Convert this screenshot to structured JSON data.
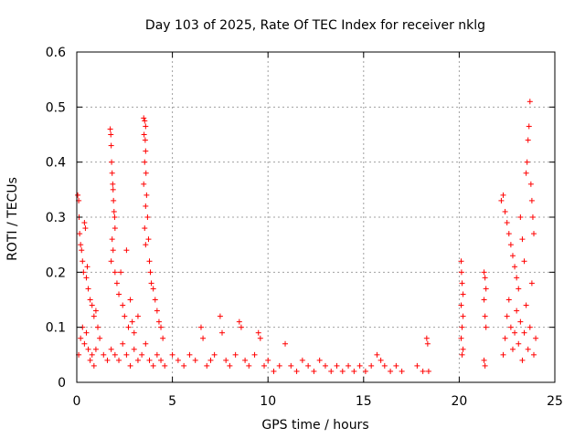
{
  "chart_data": {
    "type": "scatter",
    "title": "Day 103 of 2025, Rate Of TEC Index for receiver nklg",
    "xlabel": "GPS time / hours",
    "ylabel": "ROTI / TECUs",
    "xlim": [
      0,
      25
    ],
    "ylim": [
      0,
      0.6
    ],
    "xticks": [
      "0",
      "5",
      "10",
      "15",
      "20",
      "25"
    ],
    "yticks": [
      "0",
      "0.1",
      "0.2",
      "0.3",
      "0.4",
      "0.5",
      "0.6"
    ],
    "grid": true,
    "marker": "+",
    "color": "#ff0000",
    "series": [
      {
        "name": "ROTI",
        "points": [
          [
            0.05,
            0.34
          ],
          [
            0.1,
            0.33
          ],
          [
            0.12,
            0.3
          ],
          [
            0.15,
            0.27
          ],
          [
            0.2,
            0.25
          ],
          [
            0.25,
            0.24
          ],
          [
            0.3,
            0.22
          ],
          [
            0.35,
            0.2
          ],
          [
            0.4,
            0.29
          ],
          [
            0.45,
            0.28
          ],
          [
            0.5,
            0.19
          ],
          [
            0.55,
            0.21
          ],
          [
            0.6,
            0.17
          ],
          [
            0.7,
            0.15
          ],
          [
            0.8,
            0.14
          ],
          [
            0.9,
            0.12
          ],
          [
            1.0,
            0.13
          ],
          [
            1.1,
            0.1
          ],
          [
            0.1,
            0.05
          ],
          [
            0.2,
            0.08
          ],
          [
            0.3,
            0.1
          ],
          [
            0.4,
            0.07
          ],
          [
            0.5,
            0.09
          ],
          [
            0.6,
            0.06
          ],
          [
            0.7,
            0.04
          ],
          [
            0.8,
            0.05
          ],
          [
            0.9,
            0.03
          ],
          [
            1.0,
            0.06
          ],
          [
            1.2,
            0.08
          ],
          [
            1.4,
            0.05
          ],
          [
            1.6,
            0.04
          ],
          [
            1.8,
            0.06
          ],
          [
            2.0,
            0.05
          ],
          [
            2.2,
            0.04
          ],
          [
            2.4,
            0.07
          ],
          [
            2.6,
            0.05
          ],
          [
            2.8,
            0.03
          ],
          [
            3.0,
            0.06
          ],
          [
            3.2,
            0.04
          ],
          [
            3.4,
            0.05
          ],
          [
            3.6,
            0.07
          ],
          [
            3.8,
            0.04
          ],
          [
            4.0,
            0.03
          ],
          [
            4.2,
            0.05
          ],
          [
            4.4,
            0.04
          ],
          [
            4.6,
            0.03
          ],
          [
            1.75,
            0.46
          ],
          [
            1.78,
            0.45
          ],
          [
            1.8,
            0.43
          ],
          [
            1.82,
            0.4
          ],
          [
            1.85,
            0.38
          ],
          [
            1.88,
            0.36
          ],
          [
            1.9,
            0.35
          ],
          [
            1.92,
            0.33
          ],
          [
            1.95,
            0.31
          ],
          [
            1.98,
            0.3
          ],
          [
            2.0,
            0.28
          ],
          [
            1.85,
            0.26
          ],
          [
            1.9,
            0.24
          ],
          [
            1.8,
            0.22
          ],
          [
            2.0,
            0.2
          ],
          [
            2.1,
            0.18
          ],
          [
            2.2,
            0.16
          ],
          [
            2.3,
            0.2
          ],
          [
            2.4,
            0.14
          ],
          [
            2.5,
            0.12
          ],
          [
            2.6,
            0.24
          ],
          [
            2.7,
            0.1
          ],
          [
            2.8,
            0.15
          ],
          [
            2.9,
            0.11
          ],
          [
            3.0,
            0.09
          ],
          [
            3.2,
            0.12
          ],
          [
            3.5,
            0.48
          ],
          [
            3.55,
            0.475
          ],
          [
            3.6,
            0.465
          ],
          [
            3.52,
            0.45
          ],
          [
            3.58,
            0.44
          ],
          [
            3.6,
            0.42
          ],
          [
            3.55,
            0.4
          ],
          [
            3.62,
            0.38
          ],
          [
            3.5,
            0.36
          ],
          [
            3.65,
            0.34
          ],
          [
            3.6,
            0.32
          ],
          [
            3.7,
            0.3
          ],
          [
            3.55,
            0.28
          ],
          [
            3.75,
            0.26
          ],
          [
            3.6,
            0.25
          ],
          [
            3.8,
            0.22
          ],
          [
            3.85,
            0.2
          ],
          [
            3.9,
            0.18
          ],
          [
            4.0,
            0.17
          ],
          [
            4.1,
            0.15
          ],
          [
            4.2,
            0.13
          ],
          [
            4.3,
            0.11
          ],
          [
            4.4,
            0.1
          ],
          [
            4.5,
            0.08
          ],
          [
            5.0,
            0.05
          ],
          [
            5.3,
            0.04
          ],
          [
            5.6,
            0.03
          ],
          [
            5.9,
            0.05
          ],
          [
            6.2,
            0.04
          ],
          [
            6.5,
            0.1
          ],
          [
            6.6,
            0.08
          ],
          [
            6.8,
            0.03
          ],
          [
            7.0,
            0.04
          ],
          [
            7.2,
            0.05
          ],
          [
            7.5,
            0.12
          ],
          [
            7.6,
            0.09
          ],
          [
            7.8,
            0.04
          ],
          [
            8.0,
            0.03
          ],
          [
            8.3,
            0.05
          ],
          [
            8.5,
            0.11
          ],
          [
            8.6,
            0.1
          ],
          [
            8.8,
            0.04
          ],
          [
            9.0,
            0.03
          ],
          [
            9.3,
            0.05
          ],
          [
            9.5,
            0.09
          ],
          [
            9.6,
            0.08
          ],
          [
            9.8,
            0.03
          ],
          [
            10.0,
            0.04
          ],
          [
            10.3,
            0.02
          ],
          [
            10.6,
            0.03
          ],
          [
            10.9,
            0.07
          ],
          [
            11.2,
            0.03
          ],
          [
            11.5,
            0.02
          ],
          [
            11.8,
            0.04
          ],
          [
            12.1,
            0.03
          ],
          [
            12.4,
            0.02
          ],
          [
            12.7,
            0.04
          ],
          [
            13.0,
            0.03
          ],
          [
            13.3,
            0.02
          ],
          [
            13.6,
            0.03
          ],
          [
            13.9,
            0.02
          ],
          [
            14.2,
            0.03
          ],
          [
            14.5,
            0.02
          ],
          [
            14.8,
            0.03
          ],
          [
            15.1,
            0.02
          ],
          [
            15.4,
            0.03
          ],
          [
            15.7,
            0.05
          ],
          [
            15.9,
            0.04
          ],
          [
            16.1,
            0.03
          ],
          [
            16.4,
            0.02
          ],
          [
            16.7,
            0.03
          ],
          [
            17.0,
            0.02
          ],
          [
            17.8,
            0.03
          ],
          [
            18.1,
            0.02
          ],
          [
            18.3,
            0.08
          ],
          [
            18.35,
            0.07
          ],
          [
            18.4,
            0.02
          ],
          [
            20.1,
            0.22
          ],
          [
            20.12,
            0.2
          ],
          [
            20.15,
            0.18
          ],
          [
            20.2,
            0.16
          ],
          [
            20.1,
            0.14
          ],
          [
            20.2,
            0.12
          ],
          [
            20.15,
            0.1
          ],
          [
            20.1,
            0.08
          ],
          [
            20.2,
            0.06
          ],
          [
            20.15,
            0.05
          ],
          [
            21.3,
            0.2
          ],
          [
            21.35,
            0.19
          ],
          [
            21.4,
            0.17
          ],
          [
            21.3,
            0.15
          ],
          [
            21.35,
            0.12
          ],
          [
            21.4,
            0.1
          ],
          [
            21.3,
            0.04
          ],
          [
            21.35,
            0.03
          ],
          [
            22.2,
            0.33
          ],
          [
            22.3,
            0.34
          ],
          [
            22.4,
            0.31
          ],
          [
            22.5,
            0.29
          ],
          [
            22.6,
            0.27
          ],
          [
            22.7,
            0.25
          ],
          [
            22.8,
            0.23
          ],
          [
            22.9,
            0.21
          ],
          [
            23.0,
            0.19
          ],
          [
            23.1,
            0.17
          ],
          [
            23.2,
            0.3
          ],
          [
            23.3,
            0.26
          ],
          [
            23.4,
            0.22
          ],
          [
            23.5,
            0.38
          ],
          [
            23.55,
            0.4
          ],
          [
            23.6,
            0.44
          ],
          [
            23.65,
            0.465
          ],
          [
            23.7,
            0.51
          ],
          [
            23.75,
            0.36
          ],
          [
            23.8,
            0.33
          ],
          [
            23.85,
            0.3
          ],
          [
            23.9,
            0.27
          ],
          [
            22.3,
            0.05
          ],
          [
            22.4,
            0.08
          ],
          [
            22.5,
            0.12
          ],
          [
            22.6,
            0.15
          ],
          [
            22.7,
            0.1
          ],
          [
            22.8,
            0.06
          ],
          [
            22.9,
            0.09
          ],
          [
            23.0,
            0.13
          ],
          [
            23.1,
            0.07
          ],
          [
            23.2,
            0.11
          ],
          [
            23.3,
            0.04
          ],
          [
            23.4,
            0.09
          ],
          [
            23.5,
            0.14
          ],
          [
            23.6,
            0.06
          ],
          [
            23.7,
            0.1
          ],
          [
            23.8,
            0.18
          ],
          [
            23.9,
            0.05
          ],
          [
            24.0,
            0.08
          ]
        ]
      }
    ]
  }
}
